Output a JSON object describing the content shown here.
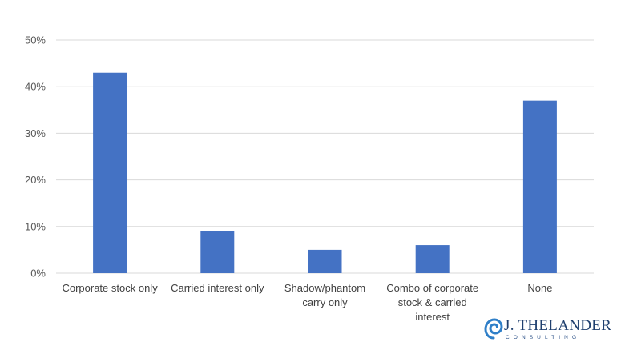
{
  "chart_data": {
    "type": "bar",
    "categories": [
      [
        "Corporate stock only"
      ],
      [
        "Carried interest only"
      ],
      [
        "Shadow/phantom",
        "carry only"
      ],
      [
        "Combo of corporate",
        "stock & carried",
        "interest"
      ],
      [
        "None"
      ]
    ],
    "values": [
      43,
      9,
      5,
      6,
      37
    ],
    "yticks": [
      "0%",
      "10%",
      "20%",
      "30%",
      "40%",
      "50%"
    ],
    "ylim": [
      0,
      50
    ],
    "grid": true,
    "bar_color": "#4472c4",
    "title": "",
    "xlabel": "",
    "ylabel": ""
  },
  "logo": {
    "name": "J. THELANDER",
    "sub": "CONSULTING",
    "color": "#1f3f6e",
    "accent": "#2f7fc8"
  }
}
